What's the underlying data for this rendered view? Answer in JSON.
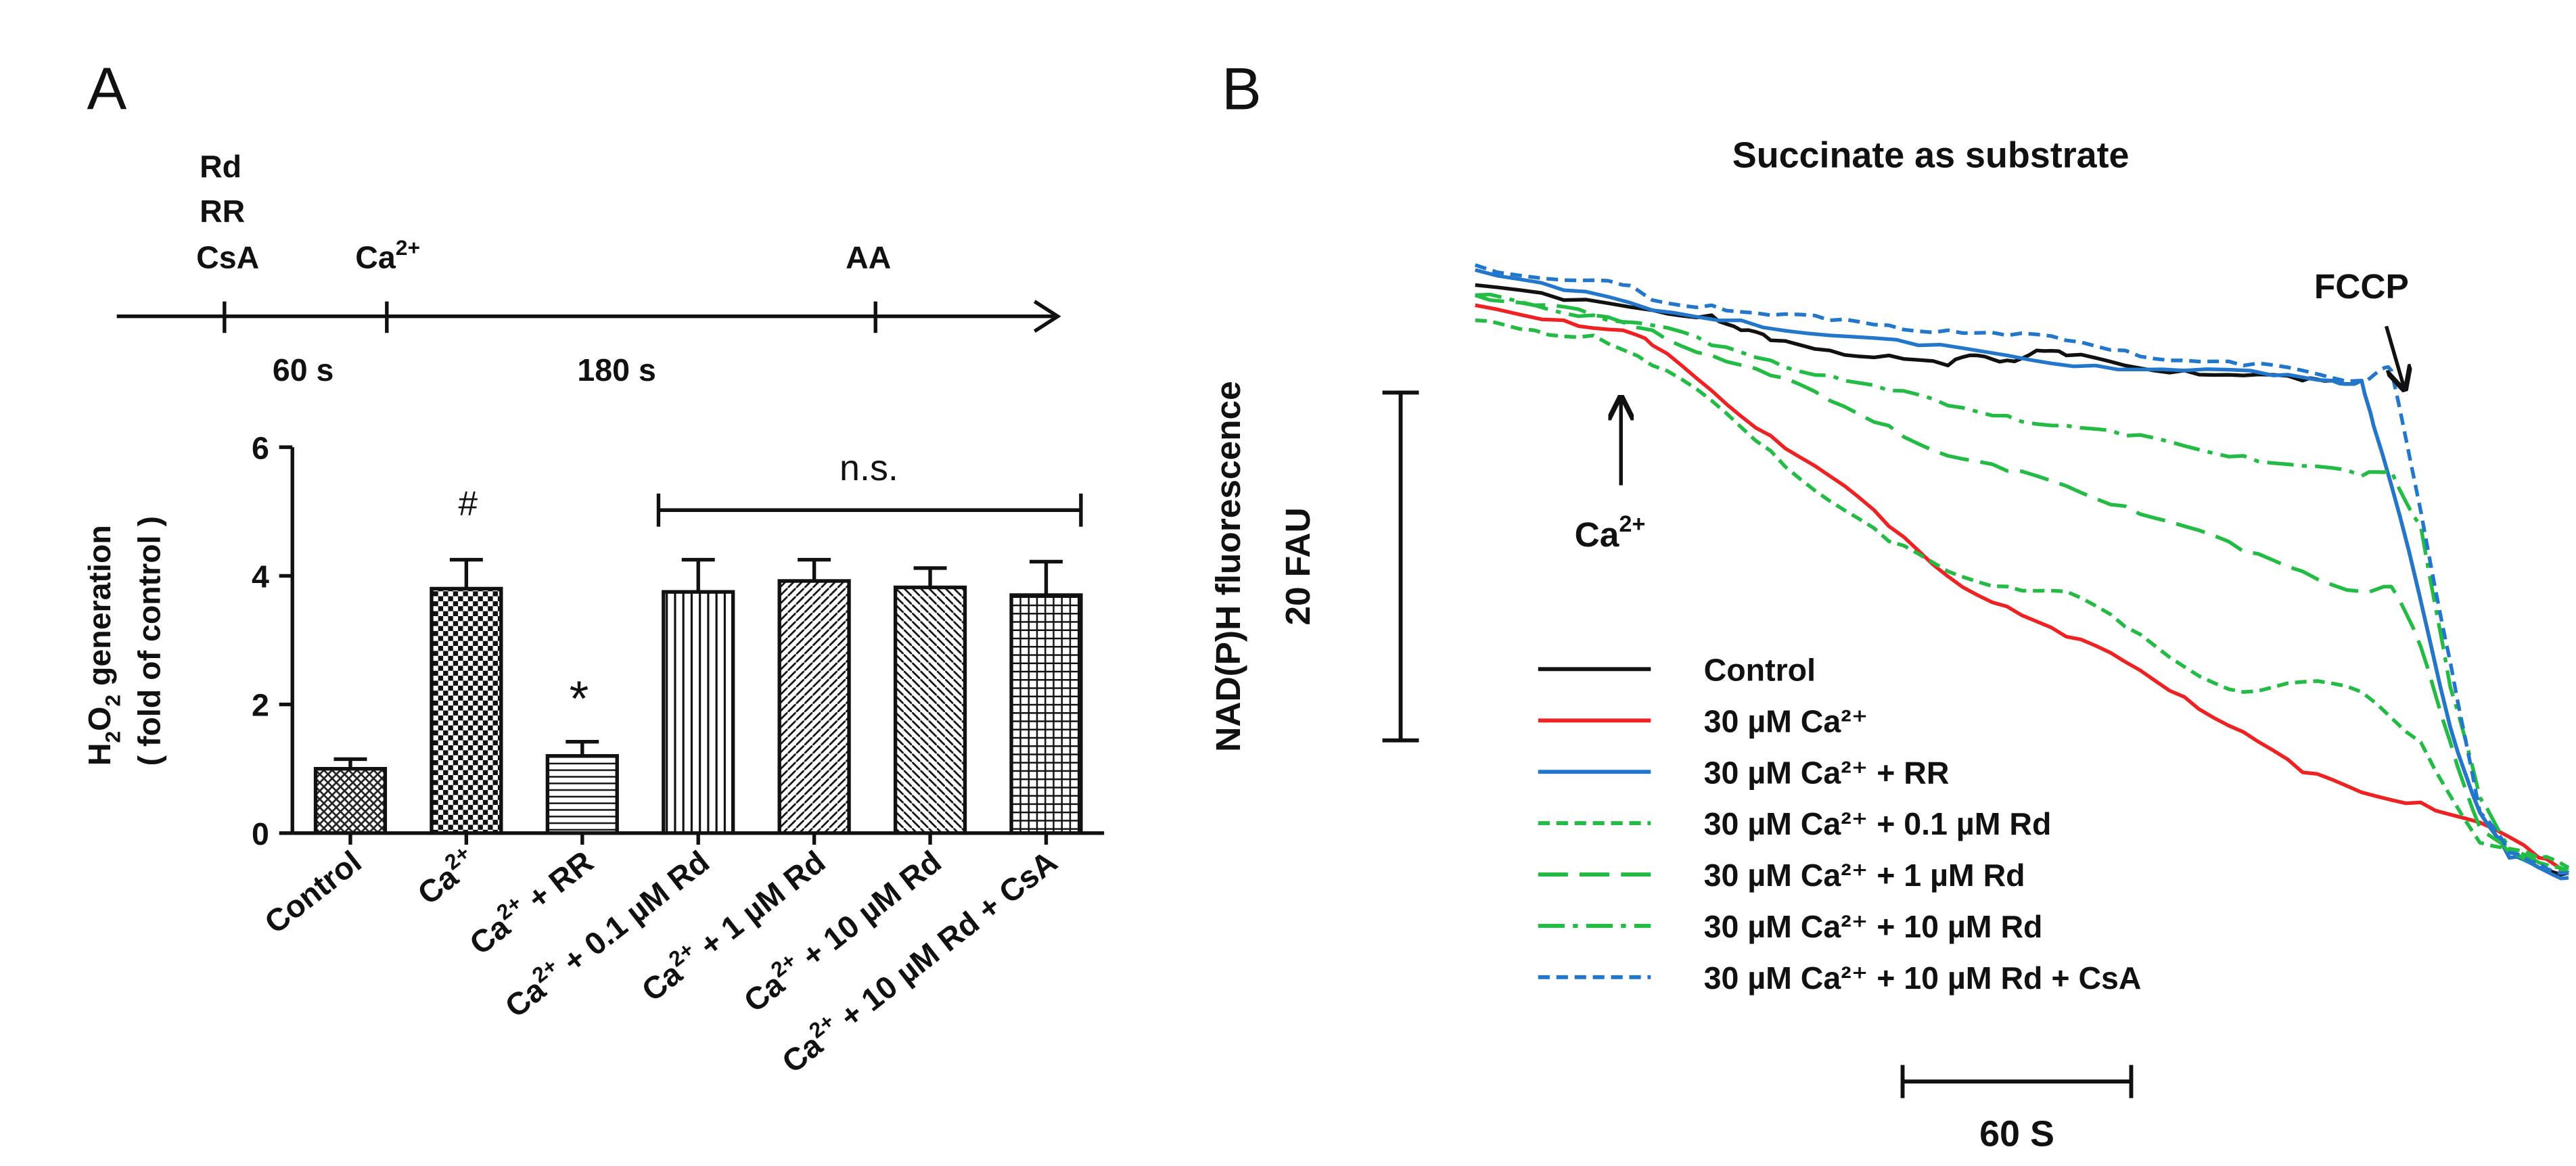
{
  "panel_a": {
    "letter": "A",
    "timeline": {
      "pre_agents": [
        "Rd",
        "RR",
        "CsA"
      ],
      "ca_label": "Ca",
      "ca_sup": "2+",
      "aa_label": "AA",
      "interval_1": "60 s",
      "interval_2": "180 s"
    },
    "significance": {
      "ns": "n.s.",
      "hash": "#",
      "star": "*"
    }
  },
  "panel_b": {
    "letter": "B",
    "title": "Succinate as substrate",
    "ylabel_line1": "NAD(P)H fluorescence",
    "ylabel_line2": "20 FAU",
    "fccp": "FCCP",
    "ca_arrow_label": "Ca",
    "ca_arrow_sup": "2+",
    "time_scale": "60 S"
  },
  "chart_data": [
    {
      "type": "bar",
      "title": "",
      "ylabel": "H2O2 generation ( fold of control )",
      "ylim": [
        0,
        6
      ],
      "yticks": [
        "0",
        "2",
        "4",
        "6"
      ],
      "categories": [
        {
          "pre": "",
          "sup": "",
          "post": "Control"
        },
        {
          "pre": "Ca",
          "sup": "2+",
          "post": ""
        },
        {
          "pre": "Ca",
          "sup": "2+",
          "post": " + RR"
        },
        {
          "pre": "Ca",
          "sup": "2+",
          "post": " + 0.1 µM Rd"
        },
        {
          "pre": "Ca",
          "sup": "2+",
          "post": " + 1 µM Rd"
        },
        {
          "pre": "Ca",
          "sup": "2+",
          "post": " + 10 µM Rd"
        },
        {
          "pre": "Ca",
          "sup": "2+",
          "post": " + 10 µM Rd + CsA"
        }
      ],
      "values": [
        1.0,
        3.8,
        1.2,
        3.75,
        3.92,
        3.82,
        3.7
      ],
      "errors": [
        0.15,
        0.45,
        0.22,
        0.5,
        0.33,
        0.3,
        0.52
      ],
      "patterns": [
        "crosshatch",
        "checker",
        "hlines",
        "vlines",
        "diag",
        "antidiag",
        "grid"
      ]
    },
    {
      "type": "line",
      "title": "Succinate as substrate",
      "xlabel": "",
      "ylabel": "NAD(P)H fluorescence",
      "series": [
        {
          "name": "Control",
          "color": "#111111",
          "dash": "solid",
          "x": [
            0,
            15,
            30,
            40,
            45,
            50,
            60,
            70,
            80,
            85,
            90,
            95,
            100,
            110,
            120,
            130,
            140,
            145,
            150,
            152,
            158,
            165,
            170,
            175,
            180,
            185
          ],
          "y": [
            100,
            97,
            95,
            94,
            91,
            89,
            87,
            86,
            84,
            86,
            85,
            87,
            86,
            84,
            83,
            82,
            81,
            81,
            81,
            72,
            47,
            12,
            -5,
            -14,
            -16,
            -17
          ]
        },
        {
          "name": "30 µM Ca²⁺",
          "color": "#ee2222",
          "dash": "solid",
          "x": [
            0,
            15,
            25,
            30,
            40,
            50,
            60,
            70,
            80,
            90,
            100,
            110,
            120,
            130,
            140,
            150,
            160,
            170,
            180,
            185
          ],
          "y": [
            96,
            93,
            91,
            88,
            79,
            70,
            62,
            52,
            42,
            36,
            30,
            25,
            18,
            11,
            3,
            -1,
            -3,
            -7,
            -14,
            -17
          ]
        },
        {
          "name": "30 µM Ca²⁺ + RR",
          "color": "#2277cc",
          "dash": "solid",
          "x": [
            0,
            15,
            30,
            45,
            60,
            75,
            90,
            105,
            120,
            135,
            145,
            150,
            152,
            158,
            165,
            170,
            175,
            180,
            185
          ],
          "y": [
            103,
            99,
            95,
            93,
            90,
            88,
            86,
            84,
            83,
            82,
            81,
            81,
            72,
            47,
            12,
            -5,
            -14,
            -16,
            -18
          ]
        },
        {
          "name": "30 µM Ca²⁺ + 0.1 µM Rd",
          "color": "#22bb44",
          "dash": "short",
          "x": [
            0,
            10,
            20,
            30,
            40,
            50,
            60,
            70,
            80,
            90,
            100,
            110,
            120,
            130,
            140,
            150,
            160,
            170,
            180,
            185
          ],
          "y": [
            93,
            91,
            90,
            84,
            77,
            67,
            57,
            49,
            43,
            40,
            39,
            32,
            24,
            19,
            21,
            19,
            9,
            -11,
            -14,
            -16
          ]
        },
        {
          "name": "30 µM Ca²⁺ + 1 µM Rd",
          "color": "#22bb44",
          "dash": "long",
          "x": [
            0,
            10,
            20,
            30,
            40,
            50,
            60,
            70,
            80,
            90,
            100,
            110,
            120,
            130,
            140,
            150,
            155,
            160,
            165,
            170,
            175,
            180,
            185
          ],
          "y": [
            98,
            96,
            94,
            91,
            86,
            82,
            77,
            72,
            66,
            63,
            60,
            56,
            52,
            47,
            43,
            39,
            40,
            28,
            9,
            -8,
            -13,
            -15,
            -16
          ]
        },
        {
          "name": "30 µM Ca²⁺ + 10 µM Rd",
          "color": "#22bb44",
          "dash": "dashdot",
          "x": [
            0,
            10,
            20,
            30,
            40,
            50,
            60,
            70,
            80,
            90,
            100,
            110,
            120,
            130,
            140,
            150,
            155,
            160,
            165,
            170,
            175,
            180,
            185
          ],
          "y": [
            98,
            96,
            94,
            92,
            88,
            85,
            82,
            79,
            76,
            74,
            72,
            70,
            68,
            66,
            64,
            62,
            63,
            52,
            20,
            -2,
            -12,
            -15,
            -17
          ]
        },
        {
          "name": "30 µM Ca²⁺ + 10 µM Rd + CsA",
          "color": "#2277cc",
          "dash": "short",
          "x": [
            0,
            15,
            25,
            30,
            40,
            50,
            60,
            70,
            80,
            90,
            100,
            110,
            120,
            130,
            140,
            150,
            153,
            155,
            160,
            165,
            170,
            175,
            180,
            185
          ],
          "y": [
            104,
            101,
            100,
            97,
            96,
            94,
            93,
            92,
            91,
            90,
            89,
            87,
            85,
            84,
            83,
            81,
            83,
            83,
            55,
            25,
            -5,
            -13,
            -15,
            -17
          ]
        }
      ]
    }
  ]
}
